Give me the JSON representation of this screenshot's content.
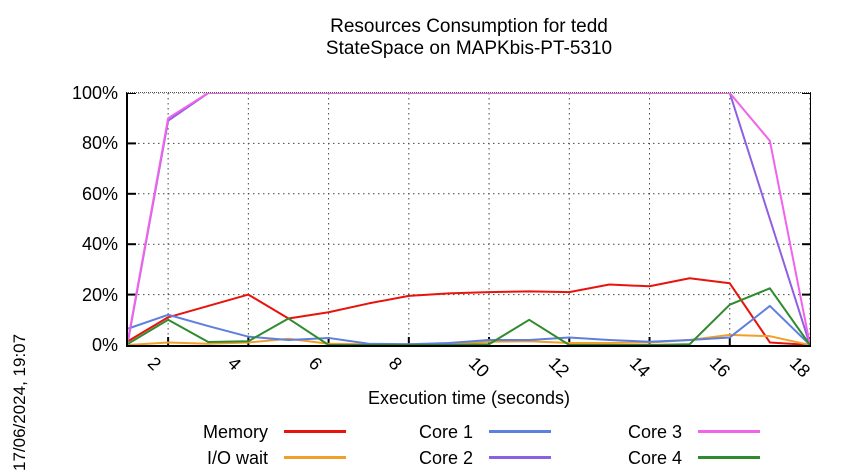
{
  "page": {
    "timestamp": "17/06/2024, 19:07"
  },
  "title": {
    "line1": "Resources Consumption for tedd",
    "line2": "StateSpace on MAPKbis-PT-5310"
  },
  "chart_data": {
    "type": "line",
    "title": "Resources Consumption for tedd StateSpace on MAPKbis-PT-5310",
    "xlabel": "Execution time (seconds)",
    "ylabel": "",
    "xlim": [
      1,
      18
    ],
    "ylim": [
      0,
      100
    ],
    "grid": true,
    "legend_position": "below",
    "x": [
      1,
      2,
      3,
      4,
      5,
      6,
      7,
      8,
      9,
      10,
      11,
      12,
      13,
      14,
      15,
      16,
      17,
      18
    ],
    "xticks": [
      2,
      4,
      6,
      8,
      10,
      12,
      14,
      16,
      18
    ],
    "yticks": [
      {
        "value": 0,
        "label": "0%"
      },
      {
        "value": 20,
        "label": "20%"
      },
      {
        "value": 40,
        "label": "40%"
      },
      {
        "value": 60,
        "label": "60%"
      },
      {
        "value": 80,
        "label": "80%"
      },
      {
        "value": 100,
        "label": "100%"
      }
    ],
    "series": [
      {
        "name": "Memory",
        "color": "#e8130c",
        "values": [
          1.5,
          11,
          15.5,
          20,
          10.5,
          13,
          16.5,
          19.5,
          20.5,
          21,
          21.3,
          21,
          24,
          23.3,
          26.5,
          24.5,
          1,
          0
        ]
      },
      {
        "name": "I/O wait",
        "color": "#f0a028",
        "values": [
          0,
          1,
          0.5,
          1,
          2.5,
          0.5,
          0.3,
          0.3,
          0.5,
          1.3,
          1.5,
          0.8,
          0.8,
          1,
          2,
          4,
          3.5,
          0
        ]
      },
      {
        "name": "Core 1",
        "color": "#5f7fdf",
        "values": [
          6.5,
          12,
          7.5,
          3.3,
          2,
          2.8,
          0.5,
          0.3,
          0.8,
          2,
          2,
          3,
          2,
          1.3,
          2,
          3,
          15.5,
          0
        ]
      },
      {
        "name": "Core 2",
        "color": "#8e5fe2",
        "values": [
          1.5,
          89,
          100,
          100,
          100,
          100,
          100,
          100,
          100,
          100,
          100,
          100,
          100,
          100,
          100,
          100,
          50,
          0
        ]
      },
      {
        "name": "Core 3",
        "color": "#f263ec",
        "values": [
          2,
          90,
          100,
          100,
          100,
          100,
          100,
          100,
          100,
          100,
          100,
          100,
          100,
          100,
          100,
          100,
          81,
          0
        ]
      },
      {
        "name": "Core 4",
        "color": "#2e8b2e",
        "values": [
          0.5,
          10,
          1.2,
          1.5,
          10.5,
          0,
          0,
          0,
          0,
          0.3,
          10,
          0,
          0,
          0,
          0.3,
          16,
          22.5,
          0
        ]
      }
    ]
  },
  "legend": {
    "items": [
      {
        "label": "Memory",
        "color": "#e8130c"
      },
      {
        "label": "I/O wait",
        "color": "#f0a028"
      },
      {
        "label": "Core 1",
        "color": "#5f7fdf"
      },
      {
        "label": "Core 2",
        "color": "#8e5fe2"
      },
      {
        "label": "Core 3",
        "color": "#f263ec"
      },
      {
        "label": "Core 4",
        "color": "#2e8b2e"
      }
    ]
  }
}
